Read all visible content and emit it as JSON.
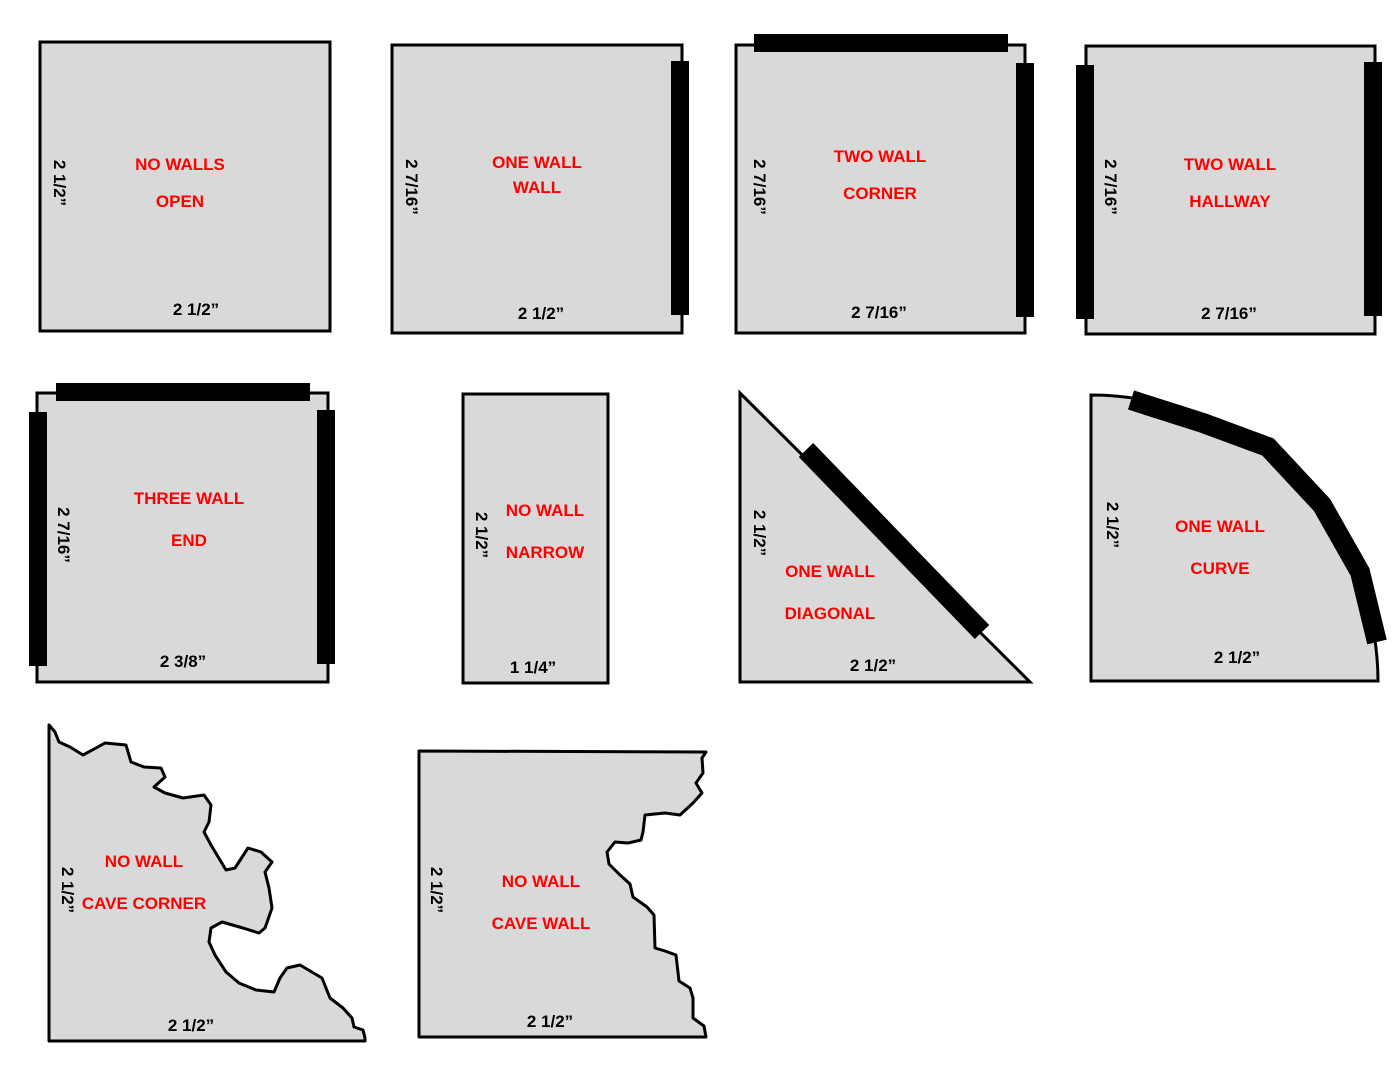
{
  "colors": {
    "tile_fill": "#d9d9d9",
    "outline": "#000000",
    "label": "#ff0000",
    "wall": "#000000"
  },
  "tiles": [
    {
      "line1": "NO WALLS",
      "line2": "OPEN",
      "width": "2 1/2”",
      "height": "2 1/2”"
    },
    {
      "line1": "ONE WALL",
      "line2": "WALL",
      "width": "2 1/2”",
      "height": "2 7/16”"
    },
    {
      "line1": "TWO WALL",
      "line2": "CORNER",
      "width": "2 7/16”",
      "height": "2 7/16”"
    },
    {
      "line1": "TWO WALL",
      "line2": "HALLWAY",
      "width": "2 7/16”",
      "height": "2 7/16”"
    },
    {
      "line1": "THREE WALL",
      "line2": "END",
      "width": "2 3/8”",
      "height": "2 7/16”"
    },
    {
      "line1": "NO WALL",
      "line2": "NARROW",
      "width": "1 1/4”",
      "height": "2 1/2”"
    },
    {
      "line1": "ONE WALL",
      "line2": "DIAGONAL",
      "width": "2 1/2”",
      "height": "2 1/2”"
    },
    {
      "line1": "ONE WALL",
      "line2": "CURVE",
      "width": "2 1/2”",
      "height": "2 1/2”"
    },
    {
      "line1": "NO WALL",
      "line2": "CAVE CORNER",
      "width": "2 1/2”",
      "height": "2 1/2”"
    },
    {
      "line1": "NO WALL",
      "line2": "CAVE WALL",
      "width": "2 1/2”",
      "height": "2 1/2”"
    }
  ]
}
